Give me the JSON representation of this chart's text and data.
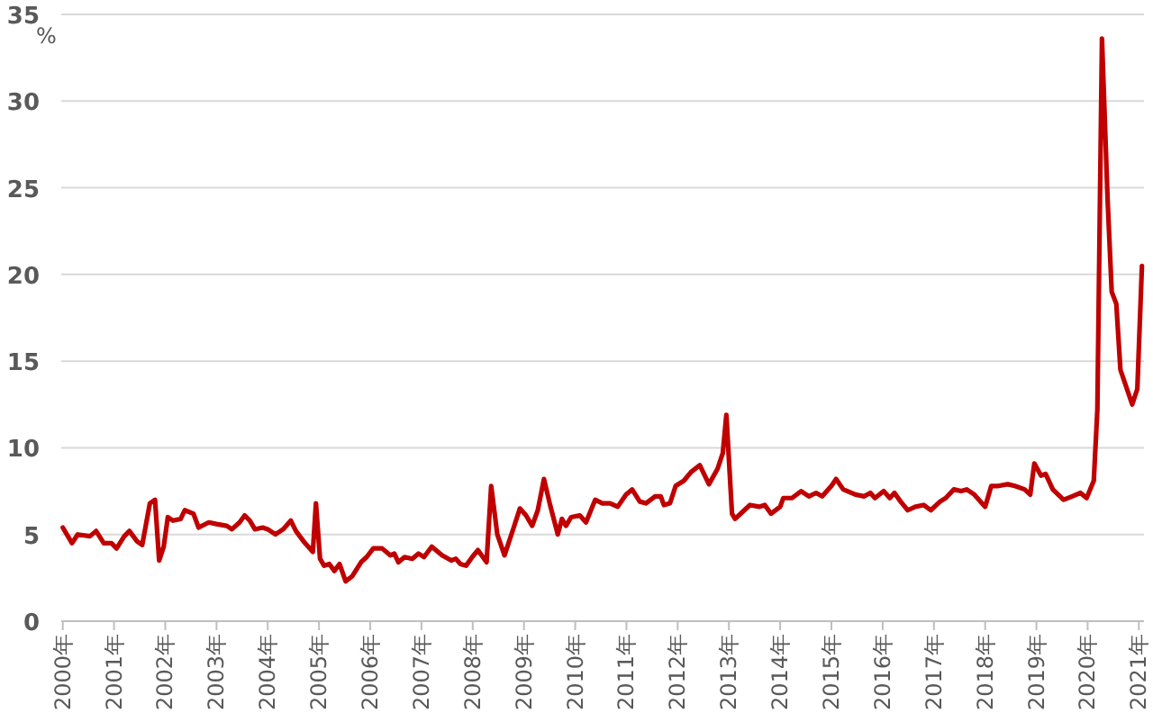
{
  "chart_data": {
    "type": "line",
    "ylabel": "%",
    "x": [
      2000.0,
      2000.18,
      2000.29,
      2000.53,
      2000.65,
      2000.8,
      2000.95,
      2001.05,
      2001.2,
      2001.3,
      2001.45,
      2001.55,
      2001.7,
      2001.8,
      2001.88,
      2001.97,
      2002.05,
      2002.15,
      2002.3,
      2002.38,
      2002.55,
      2002.65,
      2002.85,
      2003.0,
      2003.2,
      2003.3,
      2003.45,
      2003.55,
      2003.65,
      2003.75,
      2003.9,
      2004.0,
      2004.15,
      2004.3,
      2004.45,
      2004.55,
      2004.7,
      2004.88,
      2004.94,
      2005.02,
      2005.1,
      2005.2,
      2005.3,
      2005.4,
      2005.52,
      2005.65,
      2005.82,
      2005.93,
      2006.06,
      2006.23,
      2006.39,
      2006.47,
      2006.55,
      2006.67,
      2006.82,
      2006.94,
      2007.05,
      2007.2,
      2007.4,
      2007.58,
      2007.67,
      2007.76,
      2007.87,
      2007.99,
      2008.1,
      2008.27,
      2008.36,
      2008.48,
      2008.62,
      2008.8,
      2008.92,
      2009.04,
      2009.16,
      2009.27,
      2009.39,
      2009.51,
      2009.66,
      2009.74,
      2009.82,
      2009.92,
      2010.09,
      2010.21,
      2010.39,
      2010.53,
      2010.68,
      2010.83,
      2010.99,
      2011.11,
      2011.26,
      2011.38,
      2011.56,
      2011.67,
      2011.73,
      2011.85,
      2011.96,
      2012.12,
      2012.26,
      2012.43,
      2012.61,
      2012.78,
      2012.88,
      2012.95,
      2013.06,
      2013.12,
      2013.3,
      2013.41,
      2013.59,
      2013.7,
      2013.82,
      2014.0,
      2014.06,
      2014.23,
      2014.41,
      2014.56,
      2014.7,
      2014.82,
      2015.0,
      2015.09,
      2015.23,
      2015.47,
      2015.64,
      2015.76,
      2015.85,
      2016.02,
      2016.14,
      2016.23,
      2016.35,
      2016.49,
      2016.64,
      2016.8,
      2016.94,
      2017.12,
      2017.23,
      2017.39,
      2017.53,
      2017.64,
      2017.79,
      2018.0,
      2018.12,
      2018.26,
      2018.44,
      2018.58,
      2018.77,
      2018.88,
      2018.96,
      2019.09,
      2019.18,
      2019.32,
      2019.53,
      2019.7,
      2019.86,
      2019.98,
      2020.12,
      2020.19,
      2020.28,
      2020.39,
      2020.47,
      2020.56,
      2020.64,
      2020.87,
      2020.97,
      2021.06
    ],
    "series": [
      {
        "color": "#c00000",
        "values": [
          5.4,
          4.5,
          5.0,
          4.9,
          5.2,
          4.5,
          4.5,
          4.2,
          4.9,
          5.2,
          4.6,
          4.4,
          6.8,
          7.0,
          3.5,
          4.3,
          6.0,
          5.8,
          5.9,
          6.4,
          6.2,
          5.4,
          5.7,
          5.6,
          5.5,
          5.3,
          5.7,
          6.1,
          5.8,
          5.3,
          5.4,
          5.3,
          5.0,
          5.3,
          5.8,
          5.2,
          4.6,
          4.0,
          6.8,
          3.6,
          3.2,
          3.3,
          2.9,
          3.3,
          2.3,
          2.6,
          3.4,
          3.7,
          4.2,
          4.2,
          3.8,
          3.9,
          3.4,
          3.7,
          3.6,
          3.9,
          3.7,
          4.3,
          3.8,
          3.5,
          3.6,
          3.3,
          3.2,
          3.7,
          4.1,
          3.4,
          7.8,
          5.0,
          3.8,
          5.4,
          6.5,
          6.1,
          5.5,
          6.4,
          8.2,
          6.7,
          5.0,
          5.9,
          5.5,
          6.0,
          6.1,
          5.7,
          7.0,
          6.8,
          6.8,
          6.6,
          7.3,
          7.6,
          6.9,
          6.8,
          7.2,
          7.2,
          6.7,
          6.8,
          7.8,
          8.1,
          8.6,
          9.0,
          7.9,
          8.8,
          9.7,
          11.9,
          6.2,
          5.9,
          6.4,
          6.7,
          6.6,
          6.7,
          6.2,
          6.6,
          7.1,
          7.1,
          7.5,
          7.2,
          7.4,
          7.2,
          7.8,
          8.2,
          7.6,
          7.3,
          7.2,
          7.4,
          7.1,
          7.5,
          7.1,
          7.4,
          6.9,
          6.4,
          6.6,
          6.7,
          6.4,
          6.9,
          7.1,
          7.6,
          7.5,
          7.6,
          7.3,
          6.6,
          7.8,
          7.8,
          7.9,
          7.8,
          7.6,
          7.3,
          9.1,
          8.4,
          8.5,
          7.6,
          7.0,
          7.2,
          7.4,
          7.1,
          8.1,
          12.2,
          33.6,
          24.3,
          19.0,
          18.3,
          14.5,
          12.5,
          13.4,
          20.5
        ]
      }
    ],
    "xlim": [
      1999.97,
      2021.1
    ],
    "xticks": [
      {
        "value": 2000,
        "label": "2000年"
      },
      {
        "value": 2001,
        "label": "2001年"
      },
      {
        "value": 2002,
        "label": "2002年"
      },
      {
        "value": 2003,
        "label": "2003年"
      },
      {
        "value": 2004,
        "label": "2004年"
      },
      {
        "value": 2005,
        "label": "2005年"
      },
      {
        "value": 2006,
        "label": "2006年"
      },
      {
        "value": 2007,
        "label": "2007年"
      },
      {
        "value": 2008,
        "label": "2008年"
      },
      {
        "value": 2009,
        "label": "2009年"
      },
      {
        "value": 2010,
        "label": "2010年"
      },
      {
        "value": 2011,
        "label": "2011年"
      },
      {
        "value": 2012,
        "label": "2012年"
      },
      {
        "value": 2013,
        "label": "2013年"
      },
      {
        "value": 2014,
        "label": "2014年"
      },
      {
        "value": 2015,
        "label": "2015年"
      },
      {
        "value": 2016,
        "label": "2016年"
      },
      {
        "value": 2017,
        "label": "2017年"
      },
      {
        "value": 2018,
        "label": "2018年"
      },
      {
        "value": 2019,
        "label": "2019年"
      },
      {
        "value": 2020,
        "label": "2020年"
      },
      {
        "value": 2021,
        "label": "2021年"
      }
    ],
    "ylim": [
      0,
      35
    ],
    "yticks": [
      0,
      5,
      10,
      15,
      20,
      25,
      30,
      35
    ],
    "grid": "y",
    "marker": "none",
    "line_style": "solid"
  }
}
